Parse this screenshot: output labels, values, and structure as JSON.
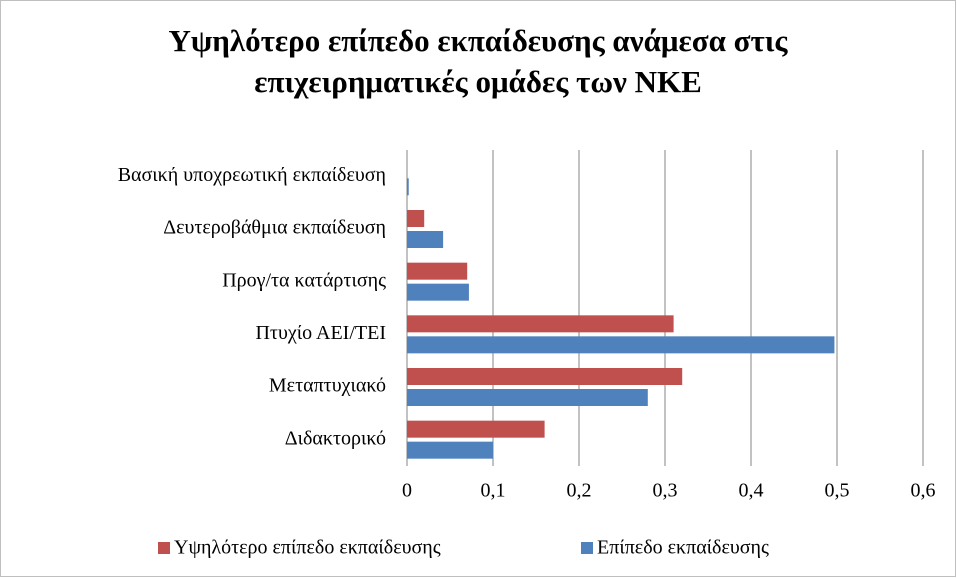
{
  "chart_data": {
    "type": "hbar",
    "title": "Υψηλότερο επίπεδο εκπαίδευσης ανάμεσα στις επιχειρηματικές ομάδες των ΝΚΕ",
    "categories": [
      "Βασική υποχρεωτική εκπαίδευση",
      "Δευτεροβάθμια εκπαίδευση",
      "Προγ/τα κατάρτισης",
      "Πτυχίο ΑΕΙ/ΤΕΙ",
      "Μεταπτυχιακό",
      "Διδακτορικό"
    ],
    "series": [
      {
        "name": "Υψηλότερο επίπεδο εκπαίδευσης",
        "color": "#c0504d",
        "values": [
          0,
          0.02,
          0.07,
          0.31,
          0.32,
          0.16
        ]
      },
      {
        "name": "Επίπεδο εκπαίδευσης",
        "color": "#4f81bd",
        "values": [
          0.002,
          0.042,
          0.072,
          0.497,
          0.28,
          0.1
        ]
      }
    ],
    "xlim": [
      0,
      0.6
    ],
    "xticks": [
      0,
      {
        "value": 0.1,
        "label": "0,1"
      },
      {
        "value": 0.2,
        "label": "0,2"
      },
      {
        "value": 0.3,
        "label": "0,3"
      },
      {
        "value": 0.4,
        "label": "0,4"
      },
      {
        "value": 0.5,
        "label": "0,5"
      },
      {
        "value": 0.6,
        "label": "0,6"
      }
    ],
    "grid": true,
    "legend": "bottom"
  }
}
